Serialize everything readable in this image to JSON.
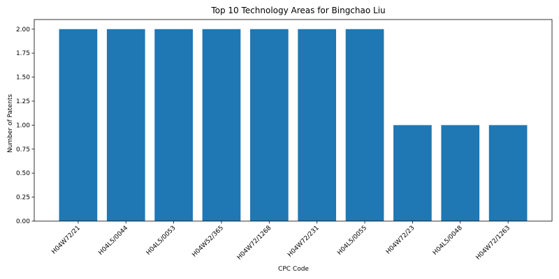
{
  "chart_data": {
    "type": "bar",
    "title": "Top 10 Technology Areas for Bingchao Liu",
    "xlabel": "CPC Code",
    "ylabel": "Number of Patents",
    "categories": [
      "H04W72/21",
      "H04L5/0044",
      "H04L5/0053",
      "H04W52/365",
      "H04W72/1268",
      "H04W72/231",
      "H04L5/0055",
      "H04W72/23",
      "H04L5/0048",
      "H04W72/1263"
    ],
    "values": [
      2,
      2,
      2,
      2,
      2,
      2,
      2,
      1,
      1,
      1
    ],
    "ylim": [
      0,
      2.1
    ],
    "yticks": [
      "0.00",
      "0.25",
      "0.50",
      "0.75",
      "1.00",
      "1.25",
      "1.50",
      "1.75",
      "2.00"
    ],
    "grid": false,
    "bar_color": "#1f77b4"
  }
}
